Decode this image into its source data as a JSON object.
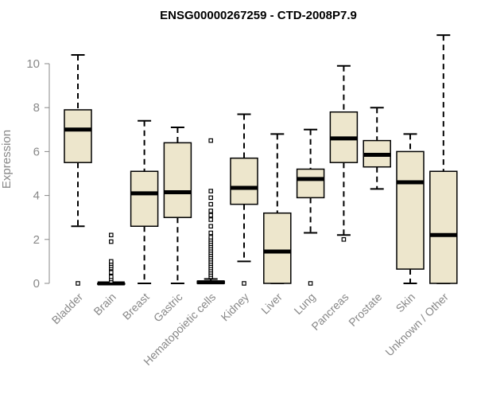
{
  "chart_data": {
    "type": "box",
    "title": "ENSG00000267259 - CTD-2008P7.9",
    "xlabel": "",
    "ylabel": "Expression",
    "ylim": [
      0,
      11.5
    ],
    "yticks": [
      0,
      2,
      4,
      6,
      8,
      10
    ],
    "box_fill": "#EDE6CC",
    "categories": [
      "Bladder",
      "Brain",
      "Breast",
      "Gastric",
      "Hematopoietic cells",
      "Kidney",
      "Liver",
      "Lung",
      "Pancreas",
      "Prostate",
      "Skin",
      "Unknown / Other"
    ],
    "boxes": [
      {
        "min": 2.6,
        "q1": 5.5,
        "median": 7.0,
        "q3": 7.9,
        "max": 10.4,
        "outliers": [
          0
        ]
      },
      {
        "min": 0,
        "q1": 0,
        "median": 0,
        "q3": 0,
        "max": 0,
        "outliers": [
          0.1,
          0.2,
          0.3,
          0.5,
          0.7,
          0.8,
          0.9,
          1.0,
          1.9,
          2.2
        ]
      },
      {
        "min": 0,
        "q1": 2.6,
        "median": 4.1,
        "q3": 5.1,
        "max": 7.4,
        "outliers": []
      },
      {
        "min": 0,
        "q1": 3.0,
        "median": 4.15,
        "q3": 6.4,
        "max": 7.1,
        "outliers": []
      },
      {
        "min": 0,
        "q1": 0,
        "median": 0.05,
        "q3": 0.1,
        "max": 0.2,
        "outliers": [
          0.3,
          0.4,
          0.5,
          0.6,
          0.7,
          0.8,
          0.9,
          1.0,
          1.1,
          1.2,
          1.3,
          1.4,
          1.5,
          1.6,
          1.7,
          1.8,
          1.9,
          2.0,
          2.1,
          2.3,
          2.6,
          2.9,
          3.1,
          3.3,
          3.6,
          3.9,
          4.2,
          6.5
        ]
      },
      {
        "min": 1.0,
        "q1": 3.6,
        "median": 4.35,
        "q3": 5.7,
        "max": 7.7,
        "outliers": [
          0
        ]
      },
      {
        "min": 0,
        "q1": 0,
        "median": 1.45,
        "q3": 3.2,
        "max": 6.8,
        "outliers": []
      },
      {
        "min": 2.3,
        "q1": 3.9,
        "median": 4.75,
        "q3": 5.2,
        "max": 7.0,
        "outliers": [
          0
        ]
      },
      {
        "min": 2.2,
        "q1": 5.5,
        "median": 6.6,
        "q3": 7.8,
        "max": 9.9,
        "outliers": [
          2.0
        ]
      },
      {
        "min": 4.3,
        "q1": 5.3,
        "median": 5.85,
        "q3": 6.5,
        "max": 8.0,
        "outliers": []
      },
      {
        "min": 0,
        "q1": 0.65,
        "median": 4.6,
        "q3": 6.0,
        "max": 6.8,
        "outliers": []
      },
      {
        "min": 0,
        "q1": 0,
        "median": 2.2,
        "q3": 5.1,
        "max": 11.3,
        "outliers": []
      }
    ]
  }
}
